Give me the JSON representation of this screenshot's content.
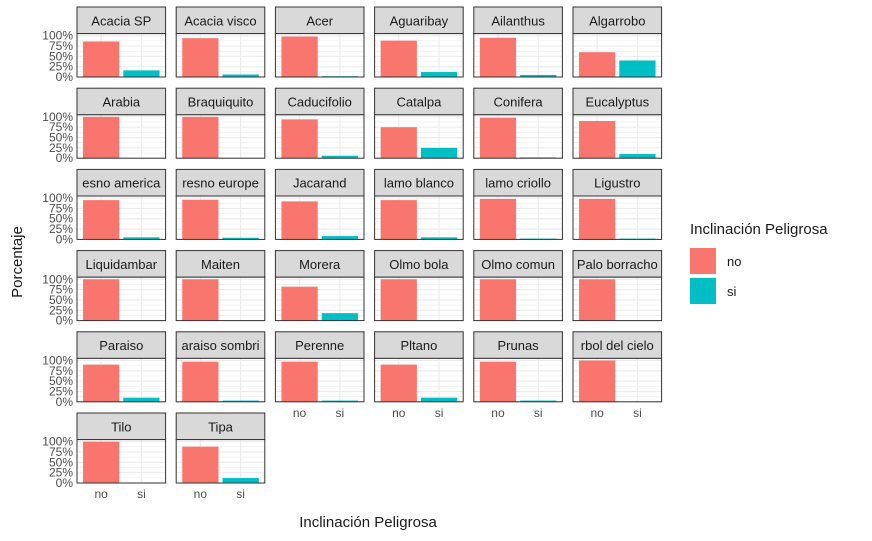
{
  "chart_data": {
    "type": "bar",
    "facet": "wrap",
    "ncol": 6,
    "xlabel": "Inclinación Peligrosa",
    "ylabel": "Porcentaje",
    "categories": [
      "no",
      "si"
    ],
    "yticks": [
      "0%",
      "25%",
      "50%",
      "75%",
      "100%"
    ],
    "ylim": [
      0,
      1.05
    ],
    "grid": true,
    "legend": {
      "title": "Inclinación Peligrosa",
      "position": "right",
      "items": [
        {
          "label": "no",
          "color": "#F8766D"
        },
        {
          "label": "si",
          "color": "#00BFC4"
        }
      ]
    },
    "panels": [
      {
        "strip": "Acacia SP",
        "values": [
          0.86,
          0.16
        ]
      },
      {
        "strip": "Acacia visco",
        "values": [
          0.94,
          0.06
        ]
      },
      {
        "strip": "Acer",
        "values": [
          0.98,
          0.02
        ]
      },
      {
        "strip": "Aguaribay",
        "values": [
          0.88,
          0.12
        ]
      },
      {
        "strip": "Ailanthus",
        "values": [
          0.95,
          0.05
        ]
      },
      {
        "strip": "Algarrobo",
        "values": [
          0.6,
          0.4
        ]
      },
      {
        "strip": "Arabia",
        "values": [
          1.0,
          0.0
        ]
      },
      {
        "strip": "Braquiquito",
        "values": [
          1.0,
          0.0
        ]
      },
      {
        "strip": "Caducifolio",
        "values": [
          0.94,
          0.06
        ]
      },
      {
        "strip": "Catalpa",
        "values": [
          0.75,
          0.25
        ]
      },
      {
        "strip": "Conifera",
        "values": [
          0.98,
          0.02
        ]
      },
      {
        "strip": "Eucalyptus",
        "values": [
          0.9,
          0.1
        ]
      },
      {
        "strip": "esno america",
        "values": [
          0.95,
          0.05
        ]
      },
      {
        "strip": "resno europe",
        "values": [
          0.96,
          0.04
        ]
      },
      {
        "strip": "Jacarand",
        "values": [
          0.92,
          0.08
        ]
      },
      {
        "strip": "lamo blanco",
        "values": [
          0.95,
          0.05
        ]
      },
      {
        "strip": "lamo criollo",
        "values": [
          0.98,
          0.02
        ]
      },
      {
        "strip": "Ligustro",
        "values": [
          0.98,
          0.02
        ]
      },
      {
        "strip": "Liquidambar",
        "values": [
          1.0,
          0.0
        ]
      },
      {
        "strip": "Maiten",
        "values": [
          1.0,
          0.0
        ]
      },
      {
        "strip": "Morera",
        "values": [
          0.82,
          0.18
        ]
      },
      {
        "strip": "Olmo bola",
        "values": [
          1.0,
          0.0
        ]
      },
      {
        "strip": "Olmo comun",
        "values": [
          1.0,
          0.0
        ]
      },
      {
        "strip": "Palo borracho",
        "values": [
          1.0,
          0.0
        ]
      },
      {
        "strip": "Paraiso",
        "values": [
          0.9,
          0.1
        ]
      },
      {
        "strip": "araiso sombri",
        "values": [
          0.97,
          0.03
        ]
      },
      {
        "strip": "Perenne",
        "values": [
          0.97,
          0.03
        ]
      },
      {
        "strip": "Pltano",
        "values": [
          0.9,
          0.1
        ]
      },
      {
        "strip": "Prunas",
        "values": [
          0.97,
          0.03
        ]
      },
      {
        "strip": "rbol del cielo",
        "values": [
          1.0,
          0.0
        ]
      },
      {
        "strip": "Tilo",
        "values": [
          1.0,
          0.0
        ]
      },
      {
        "strip": "Tipa",
        "values": [
          0.88,
          0.12
        ]
      }
    ]
  }
}
